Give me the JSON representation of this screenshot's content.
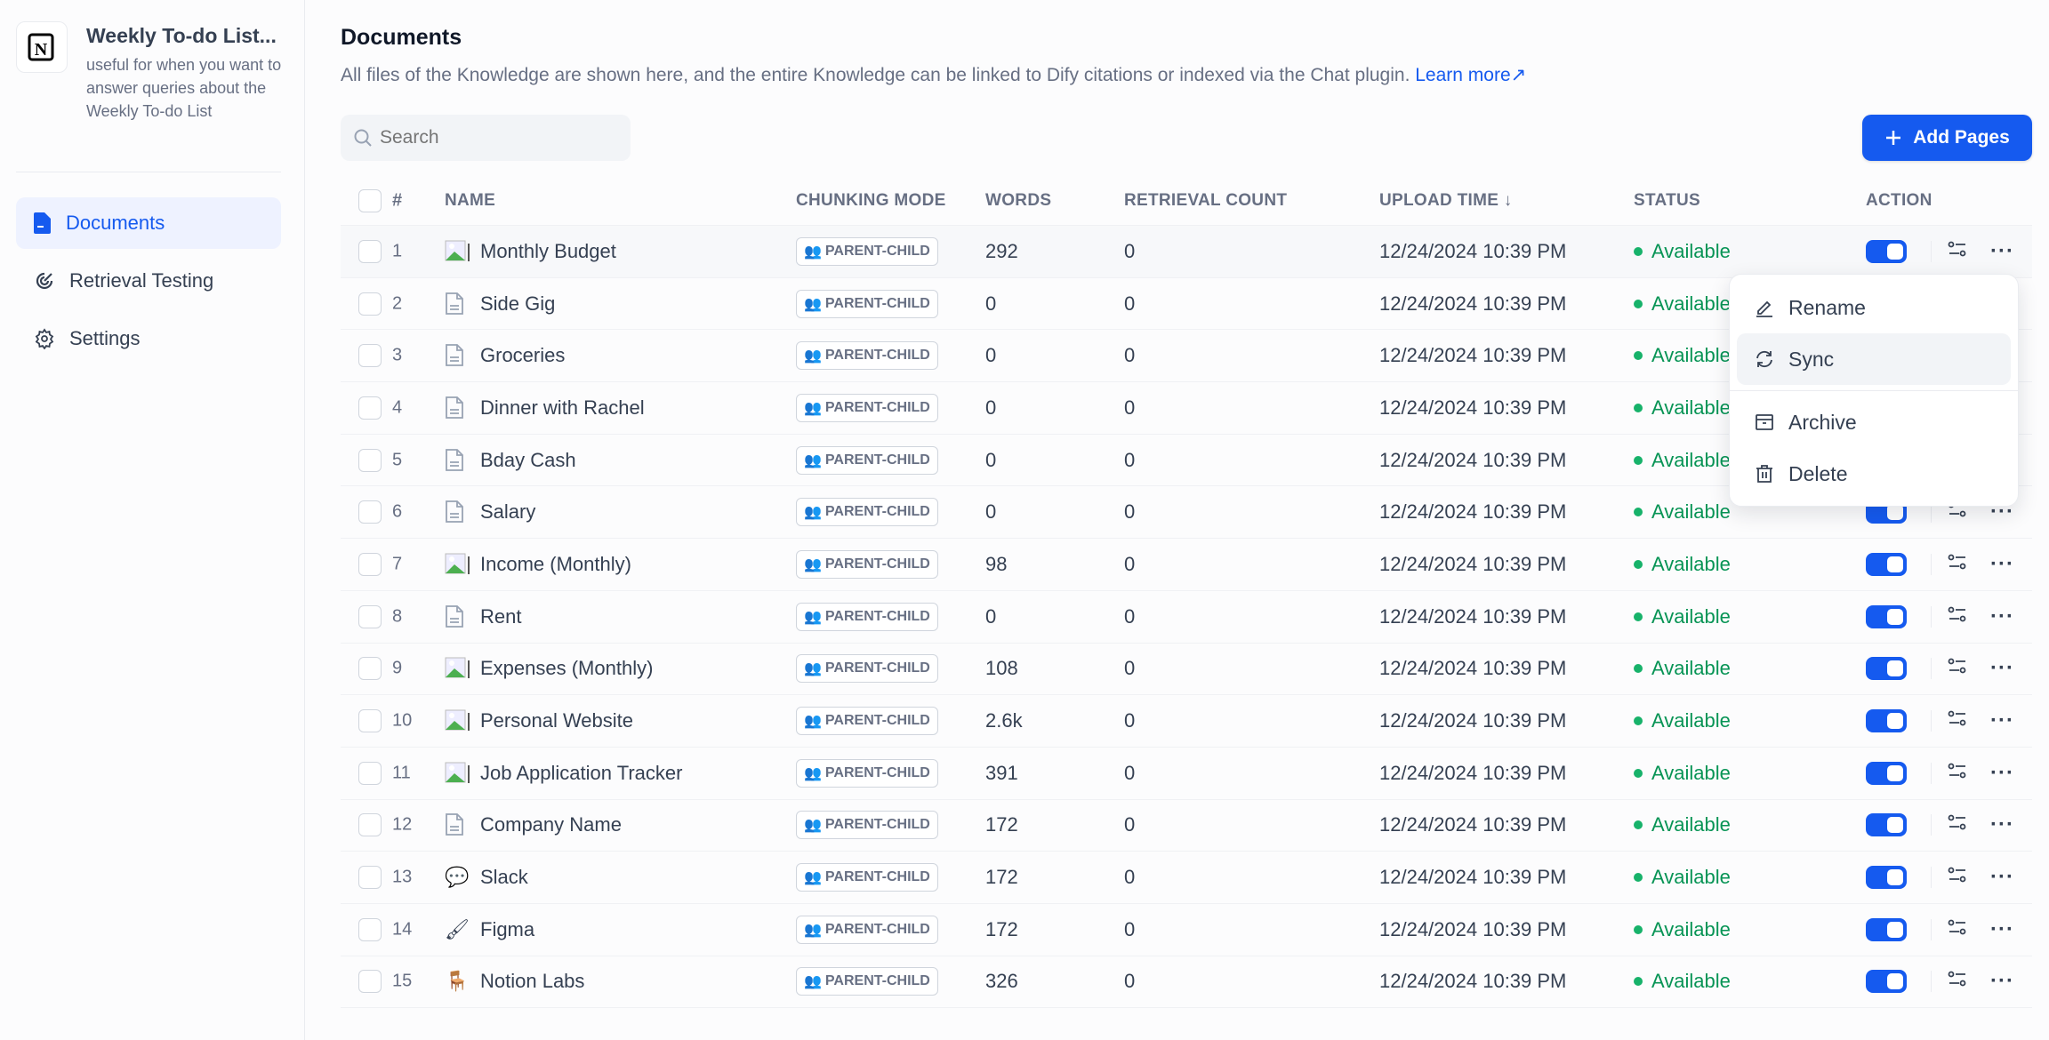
{
  "sidebar": {
    "kb_title": "Weekly To-do List...",
    "kb_description": "useful for when you want to answer queries about the Weekly To-do List",
    "nav": [
      {
        "label": "Documents",
        "icon": "document-icon",
        "active": true
      },
      {
        "label": "Retrieval Testing",
        "icon": "target-icon"
      },
      {
        "label": "Settings",
        "icon": "gear-icon"
      }
    ]
  },
  "main": {
    "title": "Documents",
    "description": "All files of the Knowledge are shown here, and the entire Knowledge can be linked to Dify citations or indexed via the Chat plugin.",
    "learn_more": "Learn more",
    "search_placeholder": "Search",
    "add_pages": "Add Pages"
  },
  "table": {
    "headers": {
      "num": "#",
      "name": "NAME",
      "chunking": "CHUNKING MODE",
      "words": "WORDS",
      "retrieval": "RETRIEVAL COUNT",
      "upload": "UPLOAD TIME",
      "status": "STATUS",
      "action": "ACTION"
    },
    "rows": [
      {
        "n": "1",
        "icon": "broken-image",
        "name": "Monthly Budget",
        "mode": "PARENT-CHILD",
        "words": "292",
        "ret": "0",
        "time": "12/24/2024 10:39 PM",
        "status": "Available",
        "enabled": true
      },
      {
        "n": "2",
        "icon": "file",
        "name": "Side Gig",
        "mode": "PARENT-CHILD",
        "words": "0",
        "ret": "0",
        "time": "12/24/2024 10:39 PM",
        "status": "Available",
        "enabled": true
      },
      {
        "n": "3",
        "icon": "file",
        "name": "Groceries",
        "mode": "PARENT-CHILD",
        "words": "0",
        "ret": "0",
        "time": "12/24/2024 10:39 PM",
        "status": "Available",
        "enabled": true
      },
      {
        "n": "4",
        "icon": "file",
        "name": "Dinner with Rachel",
        "mode": "PARENT-CHILD",
        "words": "0",
        "ret": "0",
        "time": "12/24/2024 10:39 PM",
        "status": "Available",
        "enabled": true
      },
      {
        "n": "5",
        "icon": "file",
        "name": "Bday Cash",
        "mode": "PARENT-CHILD",
        "words": "0",
        "ret": "0",
        "time": "12/24/2024 10:39 PM",
        "status": "Available",
        "enabled": true
      },
      {
        "n": "6",
        "icon": "file",
        "name": "Salary",
        "mode": "PARENT-CHILD",
        "words": "0",
        "ret": "0",
        "time": "12/24/2024 10:39 PM",
        "status": "Available",
        "enabled": true
      },
      {
        "n": "7",
        "icon": "broken-image",
        "name": "Income (Monthly)",
        "mode": "PARENT-CHILD",
        "words": "98",
        "ret": "0",
        "time": "12/24/2024 10:39 PM",
        "status": "Available",
        "enabled": true
      },
      {
        "n": "8",
        "icon": "file",
        "name": "Rent",
        "mode": "PARENT-CHILD",
        "words": "0",
        "ret": "0",
        "time": "12/24/2024 10:39 PM",
        "status": "Available",
        "enabled": true
      },
      {
        "n": "9",
        "icon": "broken-image",
        "name": "Expenses (Monthly)",
        "mode": "PARENT-CHILD",
        "words": "108",
        "ret": "0",
        "time": "12/24/2024 10:39 PM",
        "status": "Available",
        "enabled": true
      },
      {
        "n": "10",
        "icon": "broken-image",
        "name": "Personal Website",
        "mode": "PARENT-CHILD",
        "words": "2.6k",
        "ret": "0",
        "time": "12/24/2024 10:39 PM",
        "status": "Available",
        "enabled": true
      },
      {
        "n": "11",
        "icon": "broken-image",
        "name": "Job Application Tracker",
        "mode": "PARENT-CHILD",
        "words": "391",
        "ret": "0",
        "time": "12/24/2024 10:39 PM",
        "status": "Available",
        "enabled": true
      },
      {
        "n": "12",
        "icon": "file",
        "name": "Company Name",
        "mode": "PARENT-CHILD",
        "words": "172",
        "ret": "0",
        "time": "12/24/2024 10:39 PM",
        "status": "Available",
        "enabled": true
      },
      {
        "n": "13",
        "icon": "speech-bubble",
        "name": "Slack",
        "mode": "PARENT-CHILD",
        "words": "172",
        "ret": "0",
        "time": "12/24/2024 10:39 PM",
        "status": "Available",
        "enabled": true
      },
      {
        "n": "14",
        "icon": "paintbrush",
        "name": "Figma",
        "mode": "PARENT-CHILD",
        "words": "172",
        "ret": "0",
        "time": "12/24/2024 10:39 PM",
        "status": "Available",
        "enabled": true
      },
      {
        "n": "15",
        "icon": "chair",
        "name": "Notion Labs",
        "mode": "PARENT-CHILD",
        "words": "326",
        "ret": "0",
        "time": "12/24/2024 10:39 PM",
        "status": "Available",
        "enabled": true
      }
    ]
  },
  "menu": {
    "items": [
      {
        "label": "Rename",
        "icon": "pencil-icon"
      },
      {
        "label": "Sync",
        "icon": "sync-icon",
        "hover": true
      },
      {
        "label": "Archive",
        "icon": "archive-icon"
      },
      {
        "label": "Delete",
        "icon": "trash-icon"
      }
    ]
  },
  "colors": {
    "accent": "#155aef",
    "available": "#079455"
  }
}
